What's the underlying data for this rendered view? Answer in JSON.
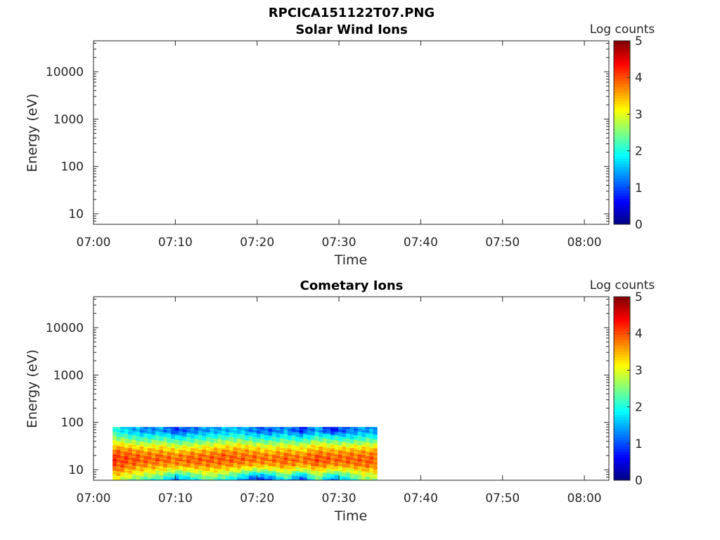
{
  "figure": {
    "title": "RPCICA151122T07.PNG"
  },
  "chart_data": [
    {
      "type": "heatmap",
      "title": "Solar Wind Ions",
      "xlabel": "Time",
      "ylabel": "Energy (eV)",
      "x_ticks": [
        "07:00",
        "07:10",
        "07:20",
        "07:30",
        "07:40",
        "07:50",
        "08:00"
      ],
      "x_range": [
        "07:00",
        "08:03"
      ],
      "y_scale": "log",
      "y_ticks": [
        10,
        100,
        1000,
        10000
      ],
      "y_tick_labels": [
        "10",
        "100",
        "1000",
        "10000"
      ],
      "y_range": [
        6,
        45000
      ],
      "colorbar": {
        "label": "Log counts",
        "range": [
          0,
          5
        ],
        "ticks": [
          "0",
          "1",
          "2",
          "3",
          "4",
          "5"
        ],
        "colormap": "jet"
      },
      "data": []
    },
    {
      "type": "heatmap",
      "title": "Cometary Ions",
      "xlabel": "Time",
      "ylabel": "Energy (eV)",
      "x_ticks": [
        "07:00",
        "07:10",
        "07:20",
        "07:30",
        "07:40",
        "07:50",
        "08:00"
      ],
      "x_range": [
        "07:00",
        "08:03"
      ],
      "y_scale": "log",
      "y_ticks": [
        10,
        100,
        1000,
        10000
      ],
      "y_tick_labels": [
        "10",
        "100",
        "1000",
        "10000"
      ],
      "y_range": [
        6,
        45000
      ],
      "colorbar": {
        "label": "Log counts",
        "range": [
          0,
          5
        ],
        "ticks": [
          "0",
          "1",
          "2",
          "3",
          "4",
          "5"
        ],
        "colormap": "jet"
      },
      "data": {
        "time_range": [
          "07:02:20",
          "07:34:40"
        ],
        "energy_range": [
          6,
          80
        ],
        "time_columns": [
          "07:02",
          "07:04",
          "07:06",
          "07:08",
          "07:10",
          "07:12",
          "07:14",
          "07:16",
          "07:18",
          "07:20",
          "07:22",
          "07:24",
          "07:26",
          "07:28",
          "07:30",
          "07:32",
          "07:34"
        ],
        "energy_rows": [
          7,
          9,
          11,
          14,
          18,
          23,
          30,
          38,
          48,
          60,
          75
        ],
        "log_counts": [
          [
            3.0,
            2.6,
            2.2,
            2.0,
            1.2,
            1.8,
            2.4,
            2.0,
            1.6,
            0.8,
            1.0,
            2.0,
            0.8,
            2.4,
            1.2,
            1.8,
            2.6
          ],
          [
            3.4,
            3.0,
            2.8,
            2.6,
            2.0,
            2.4,
            2.8,
            2.6,
            2.2,
            1.6,
            1.8,
            2.6,
            1.6,
            2.8,
            2.0,
            2.4,
            2.9
          ],
          [
            3.8,
            3.5,
            3.3,
            3.2,
            2.9,
            3.1,
            3.3,
            3.2,
            3.0,
            2.7,
            2.8,
            3.2,
            2.8,
            3.3,
            3.0,
            3.1,
            3.4
          ],
          [
            4.0,
            3.8,
            3.7,
            3.6,
            3.6,
            3.7,
            3.7,
            3.7,
            3.6,
            3.5,
            3.5,
            3.7,
            3.5,
            3.8,
            3.6,
            3.7,
            3.8
          ],
          [
            4.1,
            4.0,
            3.9,
            3.9,
            3.8,
            3.9,
            3.9,
            3.9,
            3.9,
            3.8,
            3.8,
            3.9,
            3.8,
            4.0,
            3.9,
            3.9,
            3.9
          ],
          [
            4.0,
            3.9,
            3.8,
            3.8,
            3.7,
            3.8,
            3.8,
            3.9,
            3.8,
            3.8,
            3.7,
            3.8,
            3.7,
            3.9,
            3.8,
            3.8,
            3.8
          ],
          [
            3.8,
            3.7,
            3.5,
            3.5,
            3.3,
            3.4,
            3.5,
            3.6,
            3.6,
            3.5,
            3.3,
            3.5,
            3.3,
            3.6,
            3.5,
            3.5,
            3.5
          ],
          [
            3.4,
            3.2,
            3.0,
            3.1,
            2.8,
            2.9,
            3.0,
            3.1,
            3.2,
            3.0,
            2.9,
            3.0,
            2.9,
            3.2,
            3.0,
            3.0,
            3.0
          ],
          [
            2.9,
            2.6,
            2.4,
            2.5,
            2.2,
            2.3,
            2.4,
            2.6,
            2.6,
            2.4,
            2.3,
            2.4,
            2.2,
            2.6,
            2.4,
            2.3,
            2.4
          ],
          [
            2.4,
            2.1,
            1.9,
            2.0,
            1.6,
            1.8,
            1.9,
            2.0,
            2.1,
            1.8,
            1.7,
            1.9,
            1.6,
            2.0,
            1.8,
            1.7,
            1.9
          ],
          [
            2.0,
            1.6,
            1.3,
            1.4,
            0.9,
            1.2,
            1.4,
            1.5,
            1.6,
            1.2,
            1.1,
            1.4,
            0.8,
            1.5,
            0.7,
            1.2,
            1.4
          ]
        ]
      }
    }
  ]
}
